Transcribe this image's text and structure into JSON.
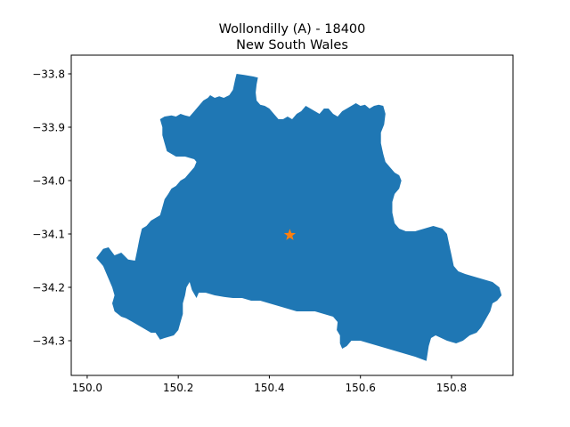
{
  "title_line1": "Wollondilly (A) - 18400",
  "title_line2": "New South Wales",
  "colors": {
    "region": "#1f77b4",
    "marker": "#ff7f0e",
    "axes": "#000000"
  },
  "chart_data": {
    "type": "map",
    "title": "Wollondilly (A) - 18400\nNew South Wales",
    "xlim": [
      149.965,
      150.935
    ],
    "ylim": [
      -34.365,
      -33.765
    ],
    "xticks": [
      150.0,
      150.2,
      150.4,
      150.6,
      150.8
    ],
    "xtick_labels": [
      "150.0",
      "150.2",
      "150.4",
      "150.6",
      "150.8"
    ],
    "yticks": [
      -33.8,
      -33.9,
      -34.0,
      -34.1,
      -34.2,
      -34.3
    ],
    "ytick_labels": [
      "−33.8",
      "−33.9",
      "−34.0",
      "−34.1",
      "−34.2",
      "−34.3"
    ],
    "centroid": {
      "lon": 150.445,
      "lat": -34.102,
      "marker": "star"
    },
    "region_outline": [
      [
        150.02,
        -34.145
      ],
      [
        150.035,
        -34.128
      ],
      [
        150.047,
        -34.125
      ],
      [
        150.06,
        -34.14
      ],
      [
        150.075,
        -34.135
      ],
      [
        150.09,
        -34.148
      ],
      [
        150.105,
        -34.15
      ],
      [
        150.11,
        -34.13
      ],
      [
        150.115,
        -34.108
      ],
      [
        150.12,
        -34.09
      ],
      [
        150.13,
        -34.085
      ],
      [
        150.14,
        -34.075
      ],
      [
        150.15,
        -34.07
      ],
      [
        150.16,
        -34.065
      ],
      [
        150.165,
        -34.05
      ],
      [
        150.17,
        -34.035
      ],
      [
        150.178,
        -34.025
      ],
      [
        150.185,
        -34.015
      ],
      [
        150.195,
        -34.01
      ],
      [
        150.205,
        -34.0
      ],
      [
        150.215,
        -33.995
      ],
      [
        150.225,
        -33.985
      ],
      [
        150.235,
        -33.975
      ],
      [
        150.24,
        -33.965
      ],
      [
        150.235,
        -33.96
      ],
      [
        150.215,
        -33.955
      ],
      [
        150.195,
        -33.955
      ],
      [
        150.175,
        -33.945
      ],
      [
        150.17,
        -33.93
      ],
      [
        150.165,
        -33.915
      ],
      [
        150.165,
        -33.9
      ],
      [
        150.16,
        -33.885
      ],
      [
        150.17,
        -33.88
      ],
      [
        150.185,
        -33.878
      ],
      [
        150.195,
        -33.88
      ],
      [
        150.205,
        -33.875
      ],
      [
        150.215,
        -33.878
      ],
      [
        150.225,
        -33.88
      ],
      [
        150.235,
        -33.87
      ],
      [
        150.245,
        -33.86
      ],
      [
        150.255,
        -33.85
      ],
      [
        150.265,
        -33.845
      ],
      [
        150.27,
        -33.84
      ],
      [
        150.28,
        -33.845
      ],
      [
        150.29,
        -33.842
      ],
      [
        150.3,
        -33.845
      ],
      [
        150.312,
        -33.84
      ],
      [
        150.32,
        -33.83
      ],
      [
        150.325,
        -33.81
      ],
      [
        150.328,
        -33.8
      ],
      [
        150.345,
        -33.802
      ],
      [
        150.365,
        -33.805
      ],
      [
        150.375,
        -33.807
      ],
      [
        150.372,
        -33.82
      ],
      [
        150.37,
        -33.835
      ],
      [
        150.372,
        -33.85
      ],
      [
        150.38,
        -33.858
      ],
      [
        150.39,
        -33.86
      ],
      [
        150.4,
        -33.865
      ],
      [
        150.41,
        -33.875
      ],
      [
        150.42,
        -33.885
      ],
      [
        150.43,
        -33.885
      ],
      [
        150.44,
        -33.88
      ],
      [
        150.45,
        -33.885
      ],
      [
        150.46,
        -33.875
      ],
      [
        150.47,
        -33.87
      ],
      [
        150.48,
        -33.86
      ],
      [
        150.49,
        -33.865
      ],
      [
        150.5,
        -33.87
      ],
      [
        150.51,
        -33.875
      ],
      [
        150.52,
        -33.865
      ],
      [
        150.53,
        -33.865
      ],
      [
        150.54,
        -33.875
      ],
      [
        150.55,
        -33.88
      ],
      [
        150.56,
        -33.87
      ],
      [
        150.57,
        -33.865
      ],
      [
        150.58,
        -33.86
      ],
      [
        150.59,
        -33.855
      ],
      [
        150.6,
        -33.86
      ],
      [
        150.61,
        -33.858
      ],
      [
        150.62,
        -33.865
      ],
      [
        150.63,
        -33.86
      ],
      [
        150.64,
        -33.858
      ],
      [
        150.65,
        -33.86
      ],
      [
        150.655,
        -33.875
      ],
      [
        150.652,
        -33.895
      ],
      [
        150.645,
        -33.91
      ],
      [
        150.645,
        -33.93
      ],
      [
        150.65,
        -33.95
      ],
      [
        150.655,
        -33.965
      ],
      [
        150.665,
        -33.975
      ],
      [
        150.675,
        -33.985
      ],
      [
        150.685,
        -33.99
      ],
      [
        150.69,
        -34.0
      ],
      [
        150.685,
        -34.015
      ],
      [
        150.675,
        -34.025
      ],
      [
        150.67,
        -34.04
      ],
      [
        150.67,
        -34.06
      ],
      [
        150.675,
        -34.08
      ],
      [
        150.685,
        -34.09
      ],
      [
        150.7,
        -34.095
      ],
      [
        150.72,
        -34.095
      ],
      [
        150.74,
        -34.09
      ],
      [
        150.76,
        -34.085
      ],
      [
        150.78,
        -34.09
      ],
      [
        150.79,
        -34.1
      ],
      [
        150.795,
        -34.12
      ],
      [
        150.8,
        -34.14
      ],
      [
        150.805,
        -34.16
      ],
      [
        150.815,
        -34.17
      ],
      [
        150.83,
        -34.175
      ],
      [
        150.85,
        -34.18
      ],
      [
        150.87,
        -34.185
      ],
      [
        150.89,
        -34.19
      ],
      [
        150.905,
        -34.2
      ],
      [
        150.91,
        -34.215
      ],
      [
        150.9,
        -34.225
      ],
      [
        150.89,
        -34.23
      ],
      [
        150.885,
        -34.245
      ],
      [
        150.875,
        -34.26
      ],
      [
        150.865,
        -34.275
      ],
      [
        150.855,
        -34.285
      ],
      [
        150.84,
        -34.29
      ],
      [
        150.825,
        -34.3
      ],
      [
        150.81,
        -34.305
      ],
      [
        150.79,
        -34.3
      ],
      [
        150.765,
        -34.29
      ],
      [
        150.755,
        -34.295
      ],
      [
        150.75,
        -34.31
      ],
      [
        150.745,
        -34.338
      ],
      [
        150.72,
        -34.33
      ],
      [
        150.7,
        -34.325
      ],
      [
        150.68,
        -34.32
      ],
      [
        150.66,
        -34.315
      ],
      [
        150.64,
        -34.31
      ],
      [
        150.62,
        -34.305
      ],
      [
        150.6,
        -34.3
      ],
      [
        150.58,
        -34.3
      ],
      [
        150.57,
        -34.31
      ],
      [
        150.56,
        -34.315
      ],
      [
        150.555,
        -34.305
      ],
      [
        150.555,
        -34.29
      ],
      [
        150.548,
        -34.28
      ],
      [
        150.55,
        -34.265
      ],
      [
        150.54,
        -34.255
      ],
      [
        150.52,
        -34.25
      ],
      [
        150.5,
        -34.245
      ],
      [
        150.48,
        -34.245
      ],
      [
        150.46,
        -34.245
      ],
      [
        150.44,
        -34.24
      ],
      [
        150.42,
        -34.235
      ],
      [
        150.4,
        -34.23
      ],
      [
        150.38,
        -34.225
      ],
      [
        150.36,
        -34.225
      ],
      [
        150.34,
        -34.22
      ],
      [
        150.32,
        -34.22
      ],
      [
        150.3,
        -34.218
      ],
      [
        150.28,
        -34.215
      ],
      [
        150.26,
        -34.21
      ],
      [
        150.245,
        -34.21
      ],
      [
        150.24,
        -34.22
      ],
      [
        150.23,
        -34.205
      ],
      [
        150.225,
        -34.19
      ],
      [
        150.218,
        -34.2
      ],
      [
        150.215,
        -34.215
      ],
      [
        150.21,
        -34.23
      ],
      [
        150.21,
        -34.25
      ],
      [
        150.205,
        -34.265
      ],
      [
        150.2,
        -34.28
      ],
      [
        150.19,
        -34.29
      ],
      [
        150.17,
        -34.295
      ],
      [
        150.16,
        -34.298
      ],
      [
        150.15,
        -34.285
      ],
      [
        150.14,
        -34.285
      ],
      [
        150.13,
        -34.28
      ],
      [
        150.12,
        -34.275
      ],
      [
        150.11,
        -34.27
      ],
      [
        150.1,
        -34.265
      ],
      [
        150.085,
        -34.258
      ],
      [
        150.075,
        -34.255
      ],
      [
        150.06,
        -34.245
      ],
      [
        150.055,
        -34.23
      ],
      [
        150.06,
        -34.215
      ],
      [
        150.055,
        -34.2
      ],
      [
        150.045,
        -34.18
      ],
      [
        150.035,
        -34.16
      ],
      [
        150.02,
        -34.145
      ]
    ]
  }
}
